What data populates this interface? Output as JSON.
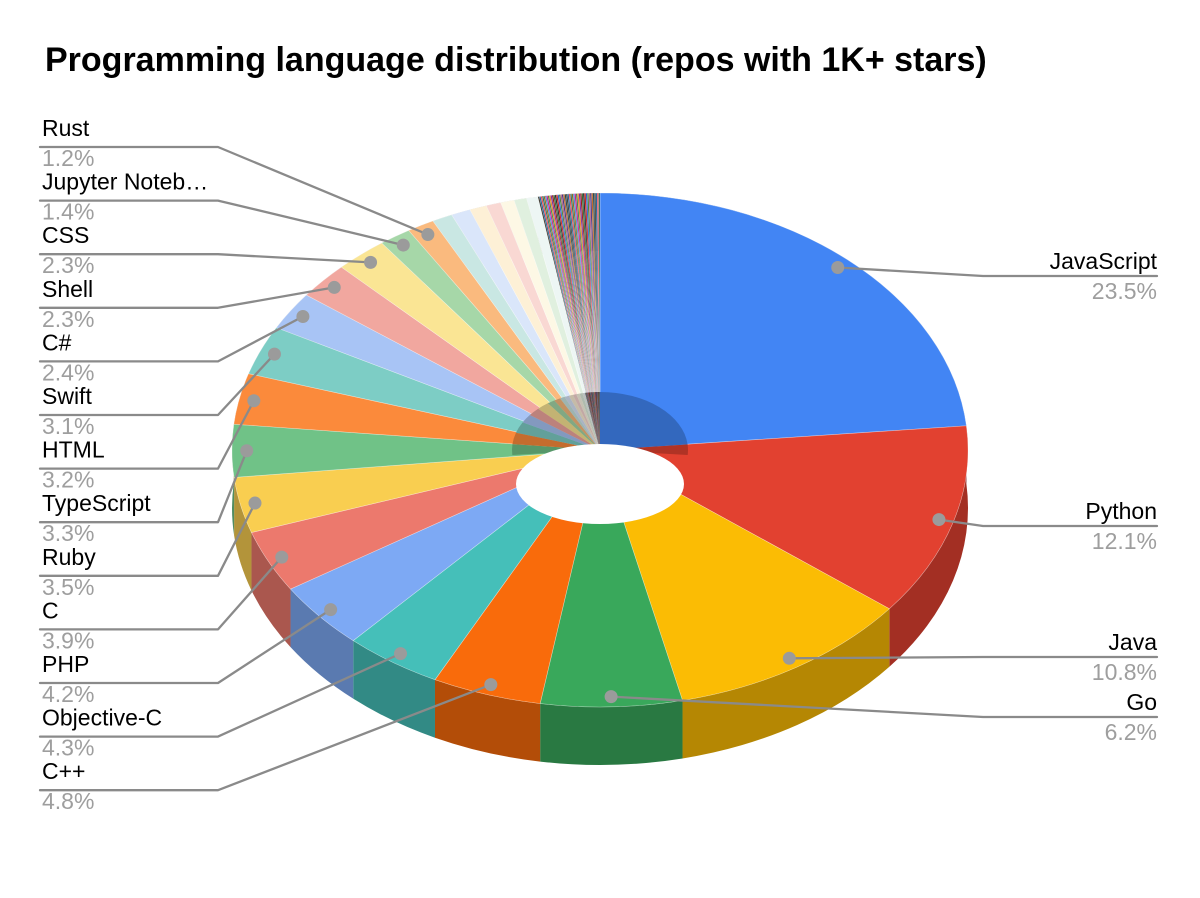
{
  "title": "Programming language distribution (repos with 1K+ stars)",
  "chart_data": {
    "type": "pie",
    "style": "3d_donut",
    "title": "Programming language distribution (repos with 1K+ stars)",
    "unit": "percent",
    "legend_position": "outside-callouts",
    "slices": [
      {
        "label": "JavaScript",
        "value": 23.5,
        "pct_label": "23.5%",
        "color": "#4285F4"
      },
      {
        "label": "Python",
        "value": 12.1,
        "pct_label": "12.1%",
        "color": "#E24130"
      },
      {
        "label": "Java",
        "value": 10.8,
        "pct_label": "10.8%",
        "color": "#FBBC04"
      },
      {
        "label": "Go",
        "value": 6.2,
        "pct_label": "6.2%",
        "color": "#39A85B"
      },
      {
        "label": "C++",
        "value": 4.8,
        "pct_label": "4.8%",
        "color": "#F96B0B"
      },
      {
        "label": "Objective-C",
        "value": 4.3,
        "pct_label": "4.3%",
        "color": "#45BFB9"
      },
      {
        "label": "PHP",
        "value": 4.2,
        "pct_label": "4.2%",
        "color": "#7DA9F4"
      },
      {
        "label": "C",
        "value": 3.9,
        "pct_label": "3.9%",
        "color": "#EC796D"
      },
      {
        "label": "Ruby",
        "value": 3.5,
        "pct_label": "3.5%",
        "color": "#F9CE50"
      },
      {
        "label": "TypeScript",
        "value": 3.3,
        "pct_label": "3.3%",
        "color": "#70C287"
      },
      {
        "label": "HTML",
        "value": 3.2,
        "pct_label": "3.2%",
        "color": "#FB8A3B"
      },
      {
        "label": "Swift",
        "value": 3.1,
        "pct_label": "3.1%",
        "color": "#7DCDC5"
      },
      {
        "label": "C#",
        "value": 2.4,
        "pct_label": "2.4%",
        "color": "#A8C4F5"
      },
      {
        "label": "Shell",
        "value": 2.3,
        "pct_label": "2.3%",
        "color": "#F1A79F"
      },
      {
        "label": "CSS",
        "value": 2.3,
        "pct_label": "2.3%",
        "color": "#FAE594"
      },
      {
        "label": "Jupyter Noteb…",
        "value": 1.4,
        "pct_label": "1.4%",
        "color": "#A6D7A8"
      },
      {
        "label": "Rust",
        "value": 1.2,
        "pct_label": "1.2%",
        "color": "#FABA7E"
      }
    ],
    "others": {
      "pastel_slices": [
        {
          "value": 0.9,
          "color": "#C9E7E3"
        },
        {
          "value": 0.85,
          "color": "#DAE6FA"
        },
        {
          "value": 0.75,
          "color": "#FDF0D6"
        },
        {
          "value": 0.65,
          "color": "#F9D8D3"
        },
        {
          "value": 0.6,
          "color": "#FDF8E5"
        },
        {
          "value": 0.55,
          "color": "#E0F0DF"
        },
        {
          "value": 0.5,
          "color": "#EDF6F4"
        }
      ],
      "sliver_total": 2.7,
      "sliver_count": 44,
      "sliver_colors": [
        "#2D2A20",
        "#0B5394",
        "#E8333C",
        "#146356",
        "#7F6000",
        "#3C78D8",
        "#C90076",
        "#2E7D32",
        "#E8710A",
        "#6A1B9A",
        "#8B0000",
        "#1B5E20",
        "#111111",
        "#CC0000",
        "#1155CC",
        "#38761D",
        "#A64D79",
        "#351C75",
        "#B45309",
        "#0C343D"
      ]
    },
    "callouts": {
      "right": [
        "JavaScript",
        "Python",
        "Java",
        "Go"
      ],
      "left": [
        "Rust",
        "Jupyter Noteb…",
        "CSS",
        "Shell",
        "C#",
        "Swift",
        "HTML",
        "TypeScript",
        "Ruby",
        "C",
        "PHP",
        "Objective-C",
        "C++"
      ]
    },
    "colors": {
      "label_text": "#000000",
      "pct_text": "#9E9E9E",
      "leader_line": "#8a8a8a",
      "dot": "#9b9b9b",
      "background": "#FFFFFF"
    }
  }
}
